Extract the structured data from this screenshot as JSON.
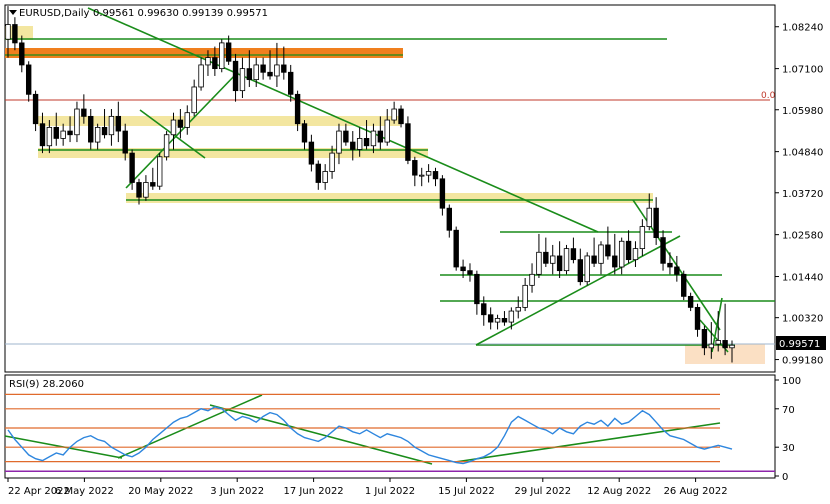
{
  "chart_data": {
    "type": "candlestick",
    "symbol_label": "EURUSD,Daily",
    "ohlc_label": "0.99561 0.99630 0.99139 0.99571",
    "current_price_label": "0.99571",
    "fib_label": "0.0",
    "y_ticks": [
      "1.08240",
      "1.07100",
      "1.05980",
      "1.04840",
      "1.03720",
      "1.02580",
      "1.01440",
      "1.00320",
      "0.99180"
    ],
    "x_ticks": [
      "22 Apr 2022",
      "6 May 2022",
      "20 May 2022",
      "3 Jun 2022",
      "17 Jun 2022",
      "1 Jul 2022",
      "15 Jul 2022",
      "29 Jul 2022",
      "12 Aug 2022",
      "26 Aug 2022"
    ],
    "ylim": [
      0.9895,
      1.0875
    ],
    "candles": [
      [
        1.079,
        1.088,
        1.074,
        1.083
      ],
      [
        1.083,
        1.085,
        1.076,
        1.078
      ],
      [
        1.078,
        1.08,
        1.07,
        1.072
      ],
      [
        1.072,
        1.073,
        1.062,
        1.064
      ],
      [
        1.064,
        1.065,
        1.054,
        1.056
      ],
      [
        1.056,
        1.059,
        1.048,
        1.05
      ],
      [
        1.05,
        1.057,
        1.048,
        1.055
      ],
      [
        1.055,
        1.059,
        1.05,
        1.052
      ],
      [
        1.052,
        1.056,
        1.05,
        1.054
      ],
      [
        1.054,
        1.058,
        1.051,
        1.053
      ],
      [
        1.053,
        1.062,
        1.051,
        1.06
      ],
      [
        1.06,
        1.064,
        1.056,
        1.058
      ],
      [
        1.058,
        1.06,
        1.049,
        1.051
      ],
      [
        1.051,
        1.056,
        1.049,
        1.055
      ],
      [
        1.055,
        1.06,
        1.052,
        1.053
      ],
      [
        1.053,
        1.06,
        1.05,
        1.058
      ],
      [
        1.058,
        1.062,
        1.051,
        1.054
      ],
      [
        1.054,
        1.056,
        1.046,
        1.048
      ],
      [
        1.048,
        1.049,
        1.038,
        1.04
      ],
      [
        1.04,
        1.041,
        1.034,
        1.036
      ],
      [
        1.036,
        1.042,
        1.035,
        1.04
      ],
      [
        1.04,
        1.044,
        1.038,
        1.039
      ],
      [
        1.039,
        1.048,
        1.038,
        1.047
      ],
      [
        1.047,
        1.054,
        1.046,
        1.053
      ],
      [
        1.053,
        1.059,
        1.049,
        1.057
      ],
      [
        1.057,
        1.06,
        1.052,
        1.055
      ],
      [
        1.055,
        1.061,
        1.053,
        1.059
      ],
      [
        1.059,
        1.068,
        1.058,
        1.066
      ],
      [
        1.066,
        1.074,
        1.065,
        1.072
      ],
      [
        1.072,
        1.076,
        1.069,
        1.074
      ],
      [
        1.074,
        1.077,
        1.069,
        1.071
      ],
      [
        1.071,
        1.079,
        1.07,
        1.078
      ],
      [
        1.078,
        1.08,
        1.072,
        1.073
      ],
      [
        1.073,
        1.075,
        1.062,
        1.065
      ],
      [
        1.065,
        1.074,
        1.063,
        1.071
      ],
      [
        1.071,
        1.076,
        1.066,
        1.068
      ],
      [
        1.068,
        1.074,
        1.066,
        1.072
      ],
      [
        1.072,
        1.074,
        1.068,
        1.07
      ],
      [
        1.07,
        1.076,
        1.068,
        1.069
      ],
      [
        1.069,
        1.078,
        1.066,
        1.072
      ],
      [
        1.072,
        1.077,
        1.068,
        1.07
      ],
      [
        1.07,
        1.072,
        1.062,
        1.064
      ],
      [
        1.064,
        1.065,
        1.054,
        1.056
      ],
      [
        1.056,
        1.057,
        1.049,
        1.051
      ],
      [
        1.051,
        1.053,
        1.043,
        1.045
      ],
      [
        1.045,
        1.046,
        1.038,
        1.04
      ],
      [
        1.04,
        1.045,
        1.038,
        1.043
      ],
      [
        1.043,
        1.05,
        1.041,
        1.048
      ],
      [
        1.048,
        1.056,
        1.045,
        1.054
      ],
      [
        1.054,
        1.056,
        1.05,
        1.051
      ],
      [
        1.051,
        1.054,
        1.046,
        1.049
      ],
      [
        1.049,
        1.055,
        1.047,
        1.052
      ],
      [
        1.052,
        1.057,
        1.049,
        1.05
      ],
      [
        1.05,
        1.056,
        1.048,
        1.054
      ],
      [
        1.054,
        1.058,
        1.049,
        1.051
      ],
      [
        1.051,
        1.06,
        1.05,
        1.057
      ],
      [
        1.057,
        1.062,
        1.056,
        1.06
      ],
      [
        1.06,
        1.061,
        1.055,
        1.056
      ],
      [
        1.056,
        1.058,
        1.045,
        1.046
      ],
      [
        1.046,
        1.047,
        1.039,
        1.042
      ],
      [
        1.042,
        1.044,
        1.039,
        1.042
      ],
      [
        1.042,
        1.045,
        1.04,
        1.043
      ],
      [
        1.043,
        1.044,
        1.039,
        1.041
      ],
      [
        1.041,
        1.042,
        1.031,
        1.033
      ],
      [
        1.033,
        1.034,
        1.025,
        1.027
      ],
      [
        1.027,
        1.028,
        1.016,
        1.017
      ],
      [
        1.017,
        1.019,
        1.014,
        1.016
      ],
      [
        1.016,
        1.018,
        1.013,
        1.015
      ],
      [
        1.015,
        1.016,
        1.004,
        1.007
      ],
      [
        1.007,
        1.009,
        1.001,
        1.004
      ],
      [
        1.004,
        1.006,
        1.0,
        1.002
      ],
      [
        1.002,
        1.004,
        1.0,
        1.003
      ],
      [
        1.003,
        1.005,
        1.001,
        1.002
      ],
      [
        1.002,
        1.006,
        1.0,
        1.005
      ],
      [
        1.005,
        1.009,
        1.003,
        1.006
      ],
      [
        1.006,
        1.014,
        1.005,
        1.012
      ],
      [
        1.012,
        1.018,
        1.01,
        1.015
      ],
      [
        1.015,
        1.026,
        1.014,
        1.021
      ],
      [
        1.021,
        1.025,
        1.017,
        1.018
      ],
      [
        1.018,
        1.023,
        1.015,
        1.02
      ],
      [
        1.02,
        1.024,
        1.014,
        1.016
      ],
      [
        1.016,
        1.023,
        1.015,
        1.022
      ],
      [
        1.022,
        1.025,
        1.018,
        1.019
      ],
      [
        1.019,
        1.022,
        1.012,
        1.013
      ],
      [
        1.013,
        1.021,
        1.012,
        1.02
      ],
      [
        1.02,
        1.025,
        1.017,
        1.018
      ],
      [
        1.018,
        1.024,
        1.015,
        1.023
      ],
      [
        1.023,
        1.028,
        1.019,
        1.02
      ],
      [
        1.02,
        1.026,
        1.015,
        1.017
      ],
      [
        1.017,
        1.025,
        1.015,
        1.024
      ],
      [
        1.024,
        1.027,
        1.018,
        1.019
      ],
      [
        1.019,
        1.024,
        1.017,
        1.022
      ],
      [
        1.022,
        1.03,
        1.02,
        1.028
      ],
      [
        1.028,
        1.037,
        1.027,
        1.033
      ],
      [
        1.033,
        1.036,
        1.023,
        1.025
      ],
      [
        1.025,
        1.027,
        1.016,
        1.018
      ],
      [
        1.018,
        1.021,
        1.015,
        1.017
      ],
      [
        1.017,
        1.02,
        1.013,
        1.015
      ],
      [
        1.015,
        1.016,
        1.008,
        1.009
      ],
      [
        1.009,
        1.01,
        1.005,
        1.006
      ],
      [
        1.006,
        1.007,
        0.998,
        1.0
      ],
      [
        1.0,
        1.001,
        0.993,
        0.995
      ],
      [
        0.995,
        1.002,
        0.992,
        0.996
      ],
      [
        0.996,
        1.005,
        0.994,
        0.997
      ],
      [
        0.997,
        1.007,
        0.993,
        0.995
      ],
      [
        0.995,
        0.997,
        0.991,
        0.9957
      ]
    ],
    "rsi": {
      "label": "RSI(9) 28.2060",
      "ticks": [
        "100",
        "70",
        "30",
        "0"
      ],
      "ylim": [
        0,
        100
      ],
      "levels": [
        85,
        70,
        50,
        30,
        15
      ],
      "values": [
        48,
        38,
        30,
        22,
        18,
        16,
        20,
        24,
        22,
        30,
        36,
        40,
        42,
        38,
        36,
        30,
        26,
        22,
        20,
        24,
        30,
        38,
        44,
        50,
        56,
        60,
        62,
        66,
        70,
        68,
        72,
        70,
        64,
        58,
        62,
        60,
        56,
        62,
        66,
        64,
        58,
        50,
        44,
        40,
        38,
        36,
        40,
        46,
        52,
        50,
        46,
        44,
        48,
        44,
        40,
        44,
        42,
        40,
        36,
        30,
        26,
        22,
        20,
        18,
        16,
        14,
        13,
        15,
        18,
        20,
        24,
        30,
        42,
        56,
        62,
        58,
        54,
        50,
        48,
        44,
        50,
        46,
        44,
        52,
        56,
        54,
        58,
        52,
        60,
        54,
        56,
        62,
        68,
        64,
        56,
        48,
        42,
        40,
        38,
        34,
        30,
        28,
        30,
        32,
        30,
        28
      ]
    }
  }
}
